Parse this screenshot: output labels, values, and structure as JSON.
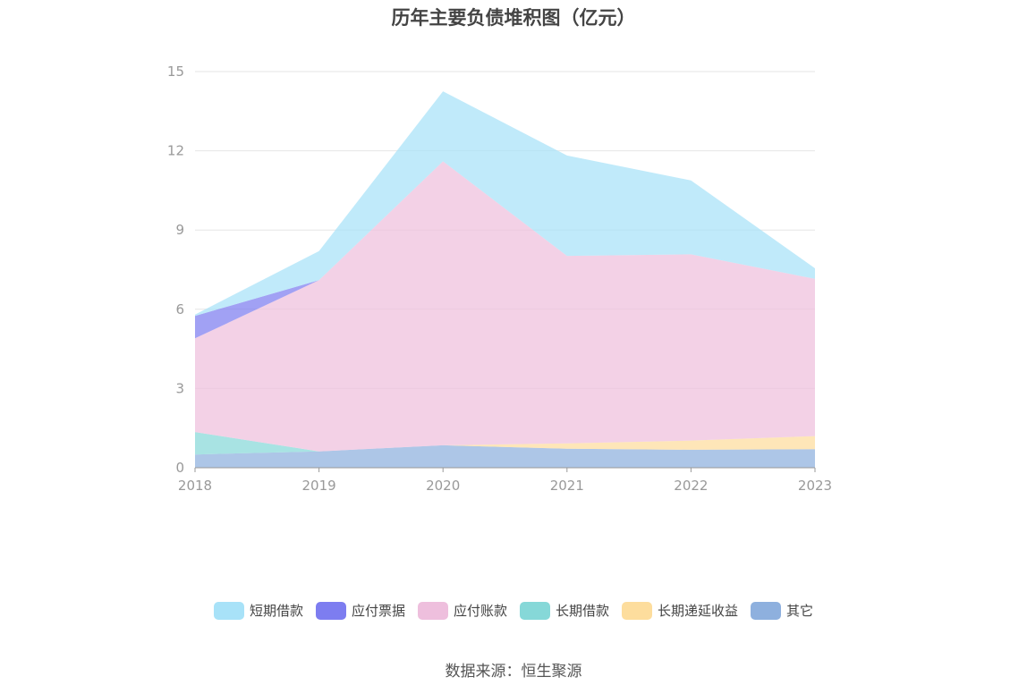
{
  "title": "历年主要负债堆积图（亿元）",
  "source": "数据来源：恒生聚源",
  "chart_data": {
    "type": "area",
    "stacked": true,
    "categories": [
      "2018",
      "2019",
      "2020",
      "2021",
      "2022",
      "2023"
    ],
    "ylim": [
      0,
      15
    ],
    "yticks": [
      "0",
      "3",
      "6",
      "9",
      "12",
      "15"
    ],
    "grid": true,
    "legend_position": "bottom",
    "series": [
      {
        "name": "其它",
        "color": "#8eb0de",
        "values": [
          0.5,
          0.62,
          0.85,
          0.72,
          0.68,
          0.7
        ]
      },
      {
        "name": "长期递延收益",
        "color": "#fddd9d",
        "values": [
          0.0,
          0.0,
          0.0,
          0.2,
          0.35,
          0.5
        ]
      },
      {
        "name": "长期借款",
        "color": "#86d8d8",
        "values": [
          0.85,
          0.0,
          0.0,
          0.0,
          0.0,
          0.0
        ]
      },
      {
        "name": "应付账款",
        "color": "#eebfdd",
        "values": [
          3.55,
          6.48,
          10.75,
          7.1,
          7.05,
          5.95
        ]
      },
      {
        "name": "应付票据",
        "color": "#7d7df0",
        "values": [
          0.85,
          0.0,
          0.0,
          0.0,
          0.0,
          0.0
        ]
      },
      {
        "name": "短期借款",
        "color": "#a8e2f8",
        "values": [
          0.05,
          1.1,
          2.65,
          3.8,
          2.8,
          0.4
        ]
      }
    ],
    "legend_order": [
      "短期借款",
      "应付票据",
      "应付账款",
      "长期借款",
      "长期递延收益",
      "其它"
    ]
  }
}
